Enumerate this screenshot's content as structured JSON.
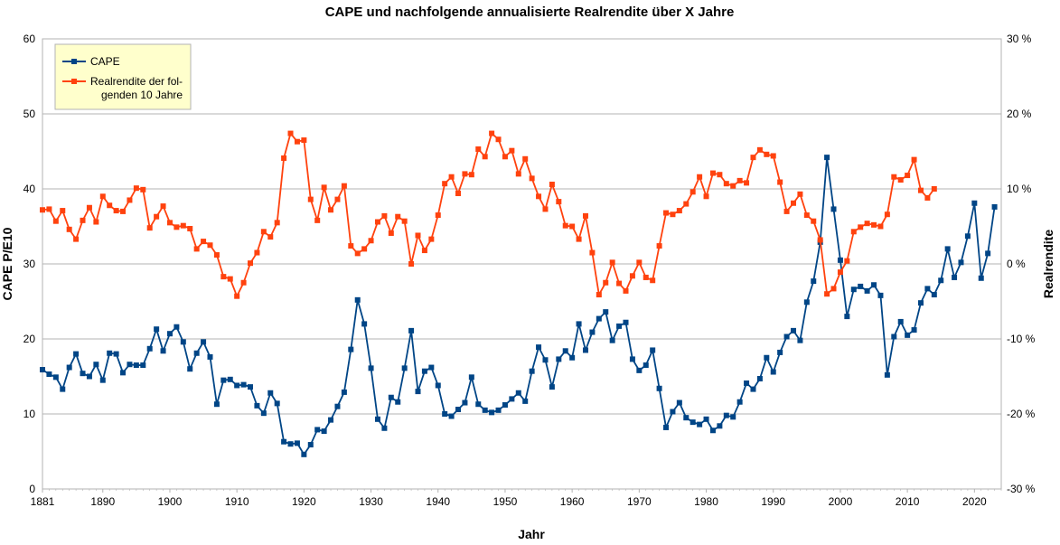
{
  "chart_data": {
    "type": "line",
    "title": "CAPE und nachfolgende annualisierte Realrendite über X Jahre",
    "xlabel": "Jahr",
    "ylabel": "CAPE P/E10",
    "y2label": "Realrendite",
    "xlim": [
      1881,
      2024
    ],
    "ylim": [
      0,
      60
    ],
    "y2lim": [
      -30,
      30
    ],
    "x_ticks": [
      "1881",
      "1890",
      "1900",
      "1910",
      "1920",
      "1930",
      "1940",
      "1950",
      "1960",
      "1970",
      "1980",
      "1990",
      "2000",
      "2010",
      "2020"
    ],
    "y_ticks": [
      "0",
      "10",
      "20",
      "30",
      "40",
      "50",
      "60"
    ],
    "y2_ticks": [
      "-30 %",
      "-20 %",
      "-10 %",
      "0 %",
      "10 %",
      "20 %",
      "30 %"
    ],
    "grid": true,
    "legend_position": "top-left",
    "series": [
      {
        "name": "CAPE",
        "color": "#004586",
        "axis": "left",
        "start_year": 1881,
        "values": [
          15.9,
          15.3,
          14.9,
          13.3,
          16.2,
          18.0,
          15.4,
          15.0,
          16.6,
          14.5,
          18.1,
          18.0,
          15.5,
          16.6,
          16.5,
          16.5,
          18.7,
          21.3,
          18.4,
          20.7,
          21.6,
          19.6,
          16.0,
          18.1,
          19.6,
          17.6,
          11.3,
          14.5,
          14.6,
          13.8,
          13.9,
          13.6,
          11.1,
          10.1,
          12.8,
          11.4,
          6.3,
          6.0,
          6.1,
          4.6,
          5.9,
          7.9,
          7.7,
          9.2,
          11.0,
          12.9,
          18.6,
          25.2,
          22.0,
          16.1,
          9.3,
          8.1,
          12.2,
          11.6,
          16.1,
          21.1,
          13.0,
          15.7,
          16.2,
          13.8,
          10.0,
          9.7,
          10.6,
          11.5,
          14.9,
          11.3,
          10.5,
          10.2,
          10.5,
          11.2,
          12.0,
          12.8,
          11.7,
          15.7,
          18.9,
          17.2,
          13.6,
          17.3,
          18.4,
          17.5,
          22.0,
          18.5,
          20.9,
          22.7,
          23.6,
          19.8,
          21.7,
          22.2,
          17.3,
          15.8,
          16.5,
          18.5,
          13.4,
          8.2,
          10.3,
          11.5,
          9.5,
          8.9,
          8.6,
          9.3,
          7.8,
          8.4,
          9.8,
          9.6,
          11.6,
          14.1,
          13.3,
          14.7,
          17.5,
          15.6,
          18.2,
          20.3,
          21.1,
          19.8,
          24.9,
          27.7,
          32.9,
          44.2,
          37.3,
          30.5,
          23.0,
          26.6,
          27.0,
          26.4,
          27.2,
          25.8,
          15.2,
          20.3,
          22.3,
          20.5,
          21.2,
          24.8,
          26.7,
          25.9,
          27.8,
          32.0,
          28.2,
          30.2,
          33.7,
          38.1,
          28.1,
          31.4,
          37.6
        ]
      },
      {
        "name": "Realrendite der folgenden 10 Jahre",
        "color": "#ff420e",
        "axis": "right",
        "start_year": 1881,
        "values": [
          7.2,
          7.3,
          5.7,
          7.1,
          4.6,
          3.3,
          5.8,
          7.5,
          5.6,
          9.0,
          7.8,
          7.1,
          7.0,
          8.5,
          10.1,
          9.9,
          4.8,
          6.3,
          7.7,
          5.5,
          4.9,
          5.1,
          4.7,
          2.0,
          3.0,
          2.5,
          1.2,
          -1.7,
          -2.0,
          -4.3,
          -2.5,
          0.1,
          1.5,
          4.3,
          3.6,
          5.5,
          14.1,
          17.4,
          16.3,
          16.5,
          8.6,
          5.8,
          10.2,
          7.2,
          8.6,
          10.4,
          2.4,
          1.4,
          2.0,
          3.1,
          5.6,
          6.4,
          4.1,
          6.3,
          5.7,
          0.0,
          3.8,
          1.8,
          3.3,
          6.5,
          10.7,
          11.6,
          9.4,
          12.0,
          11.9,
          15.3,
          14.3,
          17.4,
          16.6,
          14.3,
          15.1,
          12.0,
          14.0,
          11.4,
          9.0,
          7.3,
          10.6,
          8.3,
          5.1,
          5.0,
          3.3,
          6.4,
          1.5,
          -4.1,
          -2.5,
          0.2,
          -2.6,
          -3.6,
          -1.6,
          0.2,
          -1.8,
          -2.2,
          2.4,
          6.8,
          6.6,
          7.1,
          8.0,
          9.6,
          11.6,
          9.0,
          12.1,
          11.9,
          10.7,
          10.4,
          11.1,
          10.8,
          14.2,
          15.2,
          14.6,
          14.4,
          10.9,
          7.0,
          8.1,
          9.3,
          6.5,
          5.7,
          3.2,
          -4.0,
          -3.3,
          -1.1,
          0.4,
          4.3,
          4.9,
          5.4,
          5.2,
          5.0,
          6.6,
          11.6,
          11.2,
          11.8,
          13.9,
          9.8,
          8.8,
          10.0
        ]
      }
    ]
  }
}
